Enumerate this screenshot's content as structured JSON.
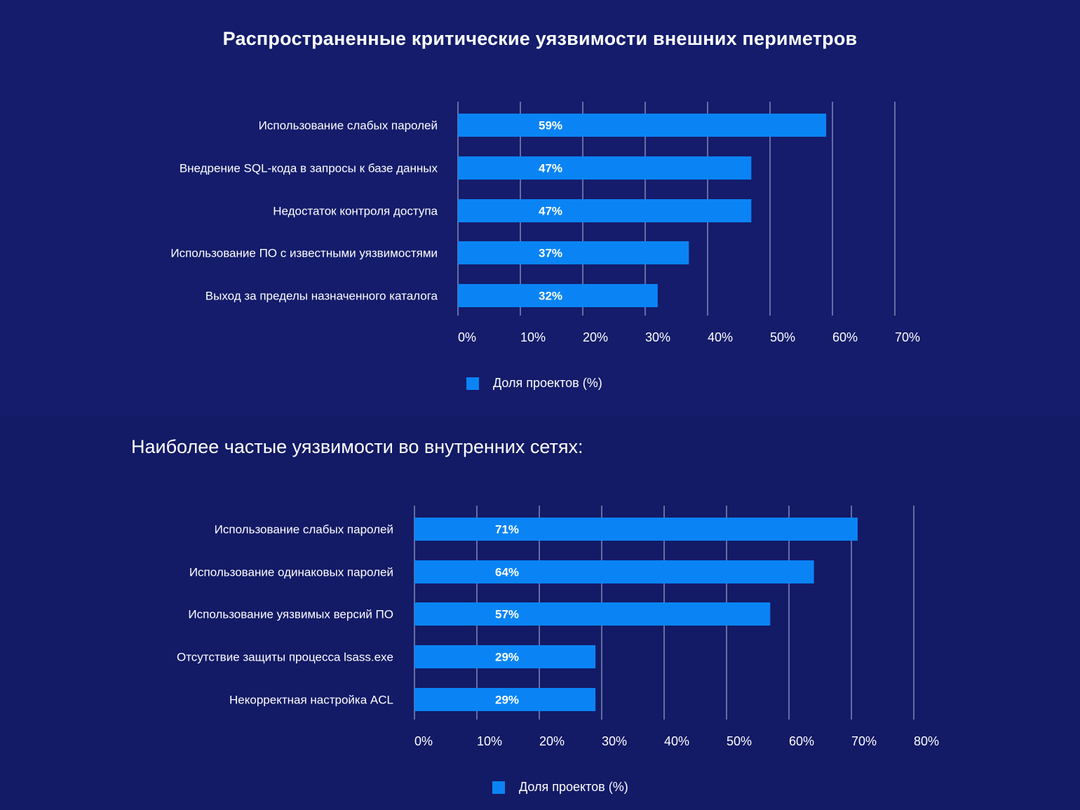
{
  "colors": {
    "bar": "#0a84f5",
    "grid": "#8089b8",
    "background_top": "#141c6b",
    "background_bottom": "#131a66"
  },
  "chart_data": [
    {
      "type": "bar",
      "orientation": "horizontal",
      "title": "Распространенные критические уязвимости внешних периметров",
      "categories": [
        "Использование слабых паролей",
        "Внедрение SQL-кода в запросы к базе данных",
        "Недостаток контроля доступа",
        "Использование ПО с известными уязвимостями",
        "Выход за пределы назначенного каталога"
      ],
      "values": [
        59,
        47,
        47,
        37,
        32
      ],
      "value_labels": [
        "59%",
        "47%",
        "47%",
        "37%",
        "32%"
      ],
      "xlim": [
        0,
        70
      ],
      "ticks": [
        0,
        10,
        20,
        30,
        40,
        50,
        60,
        70
      ],
      "tick_labels": [
        "0%",
        "10%",
        "20%",
        "30%",
        "40%",
        "50%",
        "60%",
        "70%"
      ],
      "grid": true,
      "legend": {
        "placement": "bottom",
        "label": "Доля проектов (%)"
      }
    },
    {
      "type": "bar",
      "orientation": "horizontal",
      "title": "Наиболее частые уязвимости во внутренних сетях:",
      "categories": [
        "Использование слабых паролей",
        "Использование одинаковых паролей",
        "Использование уязвимых версий ПО",
        "Отсутствие защиты процесса lsass.exe",
        "Некорректная настройка ACL"
      ],
      "values": [
        71,
        64,
        57,
        29,
        29
      ],
      "value_labels": [
        "71%",
        "64%",
        "57%",
        "29%",
        "29%"
      ],
      "xlim": [
        0,
        80
      ],
      "ticks": [
        0,
        10,
        20,
        30,
        40,
        50,
        60,
        70,
        80
      ],
      "tick_labels": [
        "0%",
        "10%",
        "20%",
        "30%",
        "40%",
        "50%",
        "60%",
        "70%",
        "80%"
      ],
      "grid": true,
      "legend": {
        "placement": "bottom",
        "label": "Доля проектов (%)"
      }
    }
  ]
}
